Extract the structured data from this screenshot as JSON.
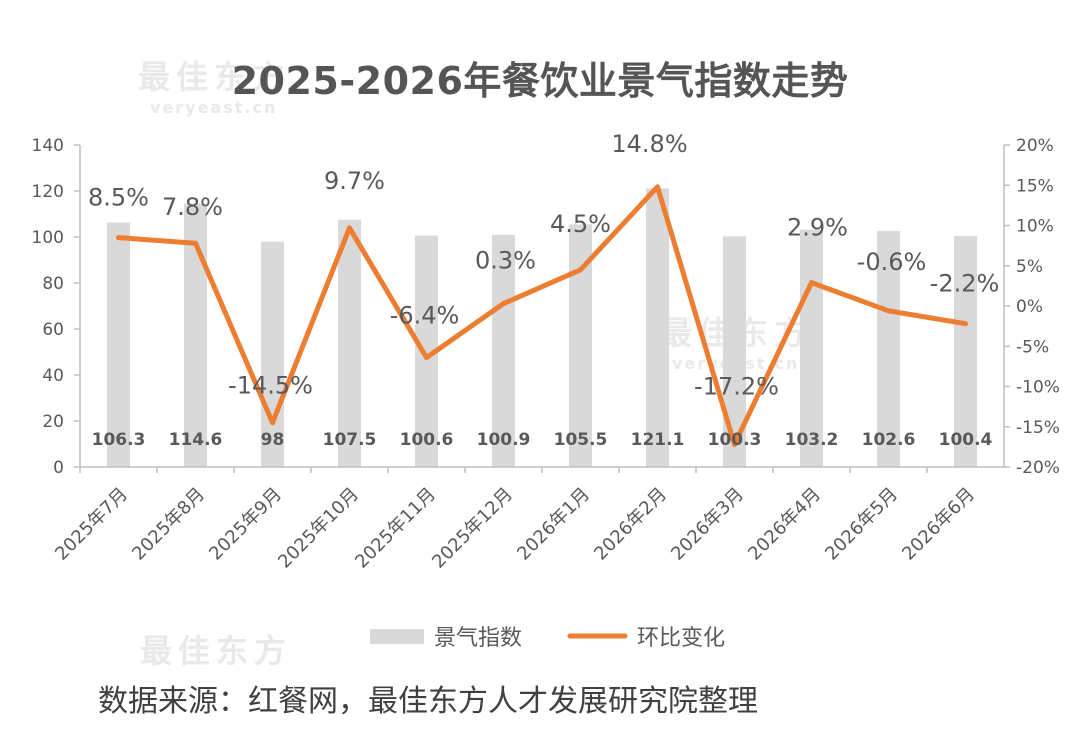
{
  "watermark": {
    "cn": "最佳东方",
    "en": "veryeast.cn"
  },
  "source_note": "数据来源：红餐网，最佳东方人才发展研究院整理",
  "colors": {
    "bar": "#d9d9d9",
    "line": "#ed7d31",
    "axis": "#bfbfbf",
    "text": "#595959"
  },
  "chart_data": {
    "type": "bar+line",
    "title": "2025-2026年餐饮业景气指数走势",
    "categories": [
      "2025年7月",
      "2025年8月",
      "2025年9月",
      "2025年10月",
      "2025年11月",
      "2025年12月",
      "2026年1月",
      "2026年2月",
      "2026年3月",
      "2026年4月",
      "2026年5月",
      "2026年6月"
    ],
    "series": [
      {
        "name": "景气指数",
        "type": "bar",
        "axis": "left",
        "values": [
          106.3,
          114.6,
          98,
          107.5,
          100.6,
          100.9,
          105.5,
          121.1,
          100.3,
          103.2,
          102.6,
          100.4
        ],
        "labels": [
          "106.3",
          "114.6",
          "98",
          "107.5",
          "100.6",
          "100.9",
          "105.5",
          "121.1",
          "100.3",
          "103.2",
          "102.6",
          "100.4"
        ]
      },
      {
        "name": "环比变化",
        "type": "line",
        "axis": "right",
        "values": [
          8.5,
          7.8,
          -14.5,
          9.7,
          -6.4,
          0.3,
          4.5,
          14.8,
          -17.2,
          2.9,
          -0.6,
          -2.2
        ],
        "labels": [
          "8.5%",
          "7.8%",
          "-14.5%",
          "9.7%",
          "-6.4%",
          "0.3%",
          "4.5%",
          "14.8%",
          "-17.2%",
          "2.9%",
          "-0.6%",
          "-2.2%"
        ]
      }
    ],
    "left_axis": {
      "min": 0,
      "max": 140,
      "ticks": [
        "0",
        "20",
        "40",
        "60",
        "80",
        "100",
        "120",
        "140"
      ]
    },
    "right_axis": {
      "min": -20,
      "max": 20,
      "ticks": [
        "-20%",
        "-15%",
        "-10%",
        "-5%",
        "0%",
        "5%",
        "10%",
        "15%",
        "20%"
      ]
    },
    "grid": false,
    "legend_position": "bottom"
  }
}
